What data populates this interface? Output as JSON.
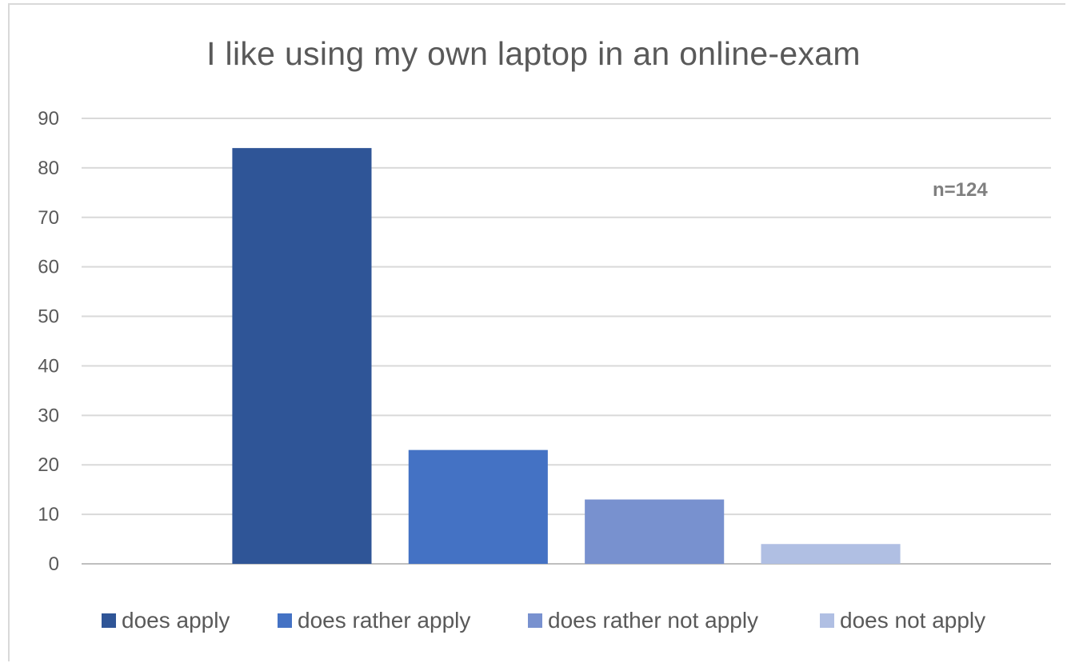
{
  "chart_data": {
    "type": "bar",
    "title": "I like using my own laptop in an online-exam",
    "xlabel": "",
    "ylabel": "",
    "ylim": [
      0,
      90
    ],
    "yticks": [
      0,
      10,
      20,
      30,
      40,
      50,
      60,
      70,
      80,
      90
    ],
    "grid": true,
    "legend_position": "bottom",
    "annotation": "n=124",
    "categories": [
      "does apply",
      "does rather apply",
      "does rather not apply",
      "does not apply"
    ],
    "values": [
      84,
      23,
      13,
      4
    ],
    "colors": [
      "#2f5597",
      "#4472c4",
      "#7891cf",
      "#b0bfe3"
    ]
  }
}
